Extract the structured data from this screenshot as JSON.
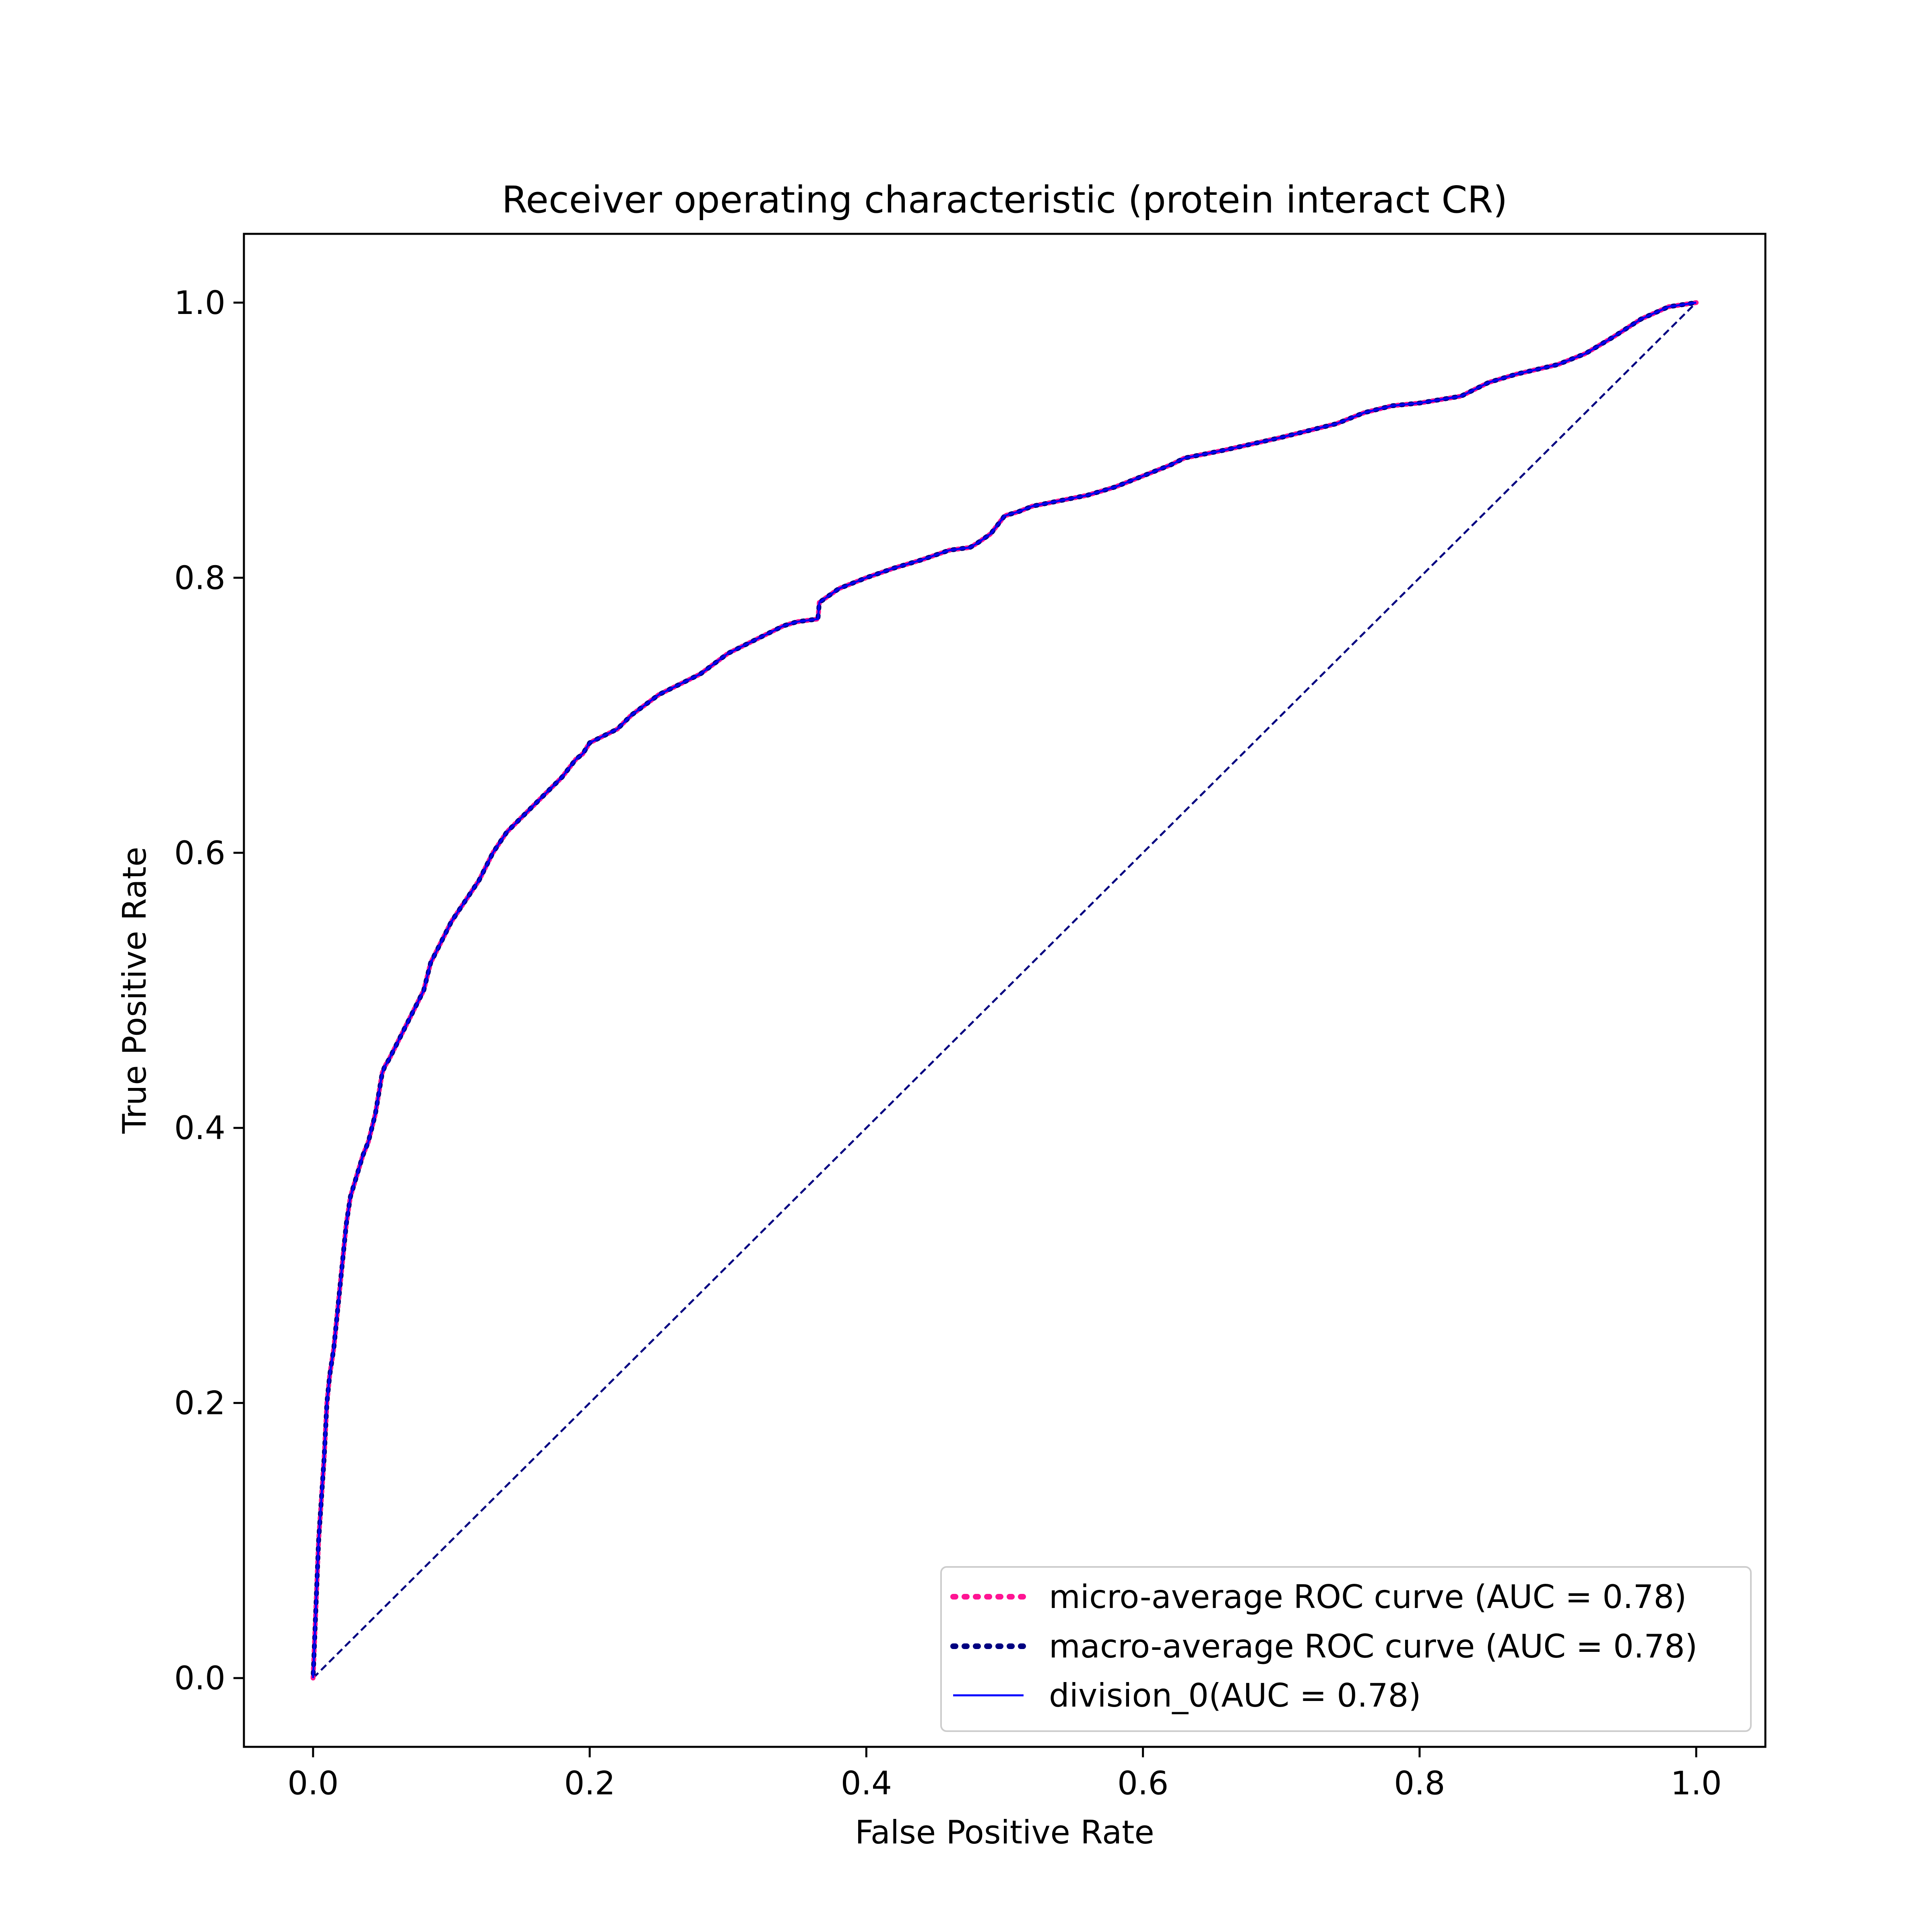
{
  "chart_data": {
    "type": "line",
    "title": "Receiver operating characteristic (protein interact CR)",
    "xlabel": "False Positive Rate",
    "ylabel": "True Positive Rate",
    "xlim": [
      -0.05,
      1.05
    ],
    "ylim": [
      -0.05,
      1.05
    ],
    "xticks": [
      0.0,
      0.2,
      0.4,
      0.6,
      0.8,
      1.0
    ],
    "yticks": [
      0.0,
      0.2,
      0.4,
      0.6,
      0.8,
      1.0
    ],
    "xtick_labels": [
      "0.0",
      "0.2",
      "0.4",
      "0.6",
      "0.8",
      "1.0"
    ],
    "ytick_labels": [
      "0.0",
      "0.2",
      "0.4",
      "0.6",
      "0.8",
      "1.0"
    ],
    "grid": false,
    "legend_position": "bottom-right",
    "roc_points": {
      "x": [
        0.0,
        0.002,
        0.004,
        0.006,
        0.008,
        0.01,
        0.012,
        0.015,
        0.018,
        0.021,
        0.024,
        0.027,
        0.03,
        0.033,
        0.036,
        0.04,
        0.045,
        0.05,
        0.052,
        0.055,
        0.06,
        0.065,
        0.07,
        0.075,
        0.08,
        0.085,
        0.09,
        0.095,
        0.1,
        0.11,
        0.12,
        0.13,
        0.14,
        0.15,
        0.16,
        0.17,
        0.18,
        0.19,
        0.195,
        0.2,
        0.21,
        0.22,
        0.23,
        0.25,
        0.27,
        0.28,
        0.3,
        0.32,
        0.34,
        0.35,
        0.365,
        0.366,
        0.38,
        0.4,
        0.42,
        0.44,
        0.46,
        0.475,
        0.48,
        0.49,
        0.5,
        0.51,
        0.52,
        0.54,
        0.56,
        0.58,
        0.6,
        0.62,
        0.63,
        0.66,
        0.7,
        0.74,
        0.76,
        0.78,
        0.8,
        0.83,
        0.85,
        0.87,
        0.9,
        0.92,
        0.94,
        0.96,
        0.98,
        1.0
      ],
      "y": [
        0.0,
        0.05,
        0.1,
        0.13,
        0.16,
        0.2,
        0.22,
        0.24,
        0.27,
        0.3,
        0.33,
        0.35,
        0.36,
        0.37,
        0.38,
        0.39,
        0.41,
        0.44,
        0.445,
        0.45,
        0.46,
        0.47,
        0.48,
        0.49,
        0.5,
        0.52,
        0.53,
        0.54,
        0.55,
        0.565,
        0.58,
        0.6,
        0.615,
        0.625,
        0.635,
        0.645,
        0.655,
        0.668,
        0.672,
        0.68,
        0.685,
        0.69,
        0.7,
        0.715,
        0.725,
        0.73,
        0.745,
        0.755,
        0.765,
        0.768,
        0.77,
        0.782,
        0.792,
        0.8,
        0.807,
        0.813,
        0.82,
        0.822,
        0.825,
        0.832,
        0.845,
        0.848,
        0.852,
        0.856,
        0.86,
        0.866,
        0.874,
        0.882,
        0.887,
        0.893,
        0.902,
        0.912,
        0.92,
        0.925,
        0.927,
        0.932,
        0.942,
        0.948,
        0.955,
        0.963,
        0.975,
        0.988,
        0.997,
        1.0
      ]
    },
    "series": [
      {
        "name": "micro-average ROC curve (AUC = 0.78)",
        "color": "#ff1493",
        "style": "dotted"
      },
      {
        "name": "macro-average ROC curve (AUC = 0.78)",
        "color": "#000080",
        "style": "dotted"
      },
      {
        "name": "division_0(AUC = 0.78)",
        "color": "#0000ff",
        "style": "solid"
      }
    ],
    "chance_line": {
      "x": [
        0.0,
        1.0
      ],
      "y": [
        0.0,
        1.0
      ],
      "color": "#000080",
      "style": "dashed"
    }
  }
}
